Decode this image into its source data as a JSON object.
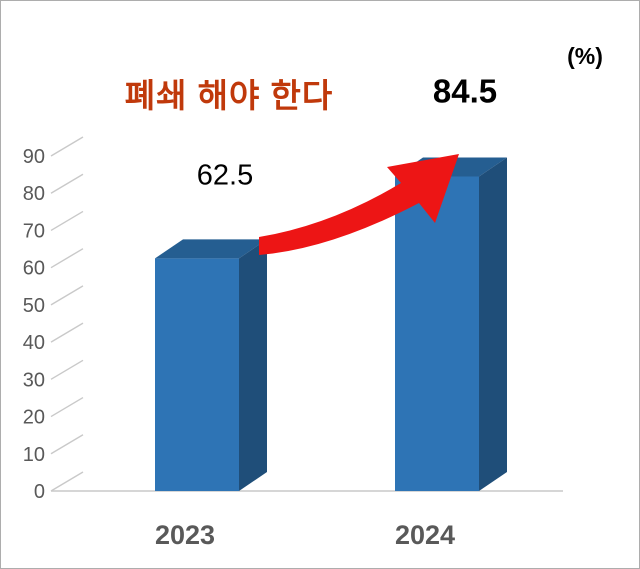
{
  "page": {
    "background": "#FFFFFF",
    "border_color": "#ADADAD"
  },
  "chart_data": {
    "type": "bar",
    "effect": "3d",
    "title": "폐쇄 해야 한다",
    "title_color": "#C0390B",
    "unit_label": "(%)",
    "categories": [
      "2023",
      "2024"
    ],
    "values": [
      62.5,
      84.5
    ],
    "value_labels": [
      "62.5",
      "84.5"
    ],
    "value_label_bold": [
      false,
      true
    ],
    "ylim": [
      0,
      90
    ],
    "yticks": [
      0,
      10,
      20,
      30,
      40,
      50,
      60,
      70,
      80,
      90
    ],
    "ytick_labels": [
      "0",
      "10",
      "20",
      "30",
      "40",
      "50",
      "60",
      "70",
      "80",
      "90"
    ],
    "xlabel": "",
    "ylabel": "",
    "legend": "none",
    "grid": "side-wall ticks only",
    "bar_colors": {
      "front": "#2E74B5",
      "top": "#255E91",
      "side": "#1F4E79"
    },
    "axis_label_color": "#595959",
    "gridline_color": "#C9C9C9",
    "arrow": {
      "color": "#ED1515",
      "from_category": "2023",
      "to_category": "2024",
      "direction": "up-right"
    }
  }
}
